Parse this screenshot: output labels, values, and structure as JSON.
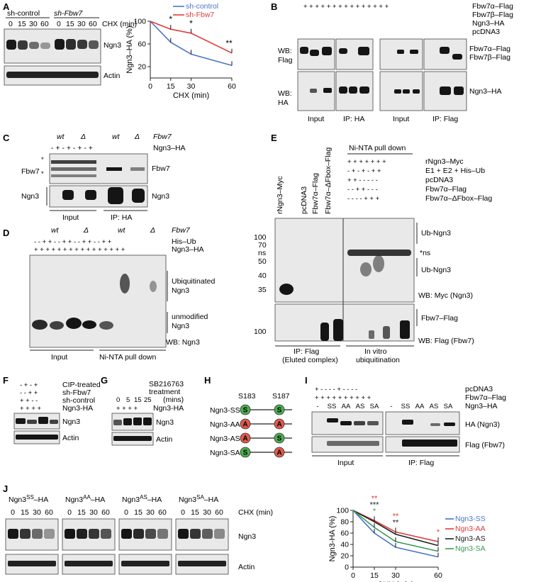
{
  "panels": {
    "A": "A",
    "B": "B",
    "C": "C",
    "D": "D",
    "E": "E",
    "F": "F",
    "G": "G",
    "H": "H",
    "I": "I",
    "J": "J"
  },
  "A": {
    "groups": [
      "sh-control",
      "sh-Fbw7"
    ],
    "cond_label": "CHX (min)",
    "timepoints": [
      "0",
      "15",
      "30",
      "60"
    ],
    "rows": [
      "Ngn3",
      "Actin"
    ]
  },
  "B": {
    "rows": [
      "Fbw7α–Flag",
      "Fbw7β–Flag",
      "Ngn3–HA",
      "pcDNA3"
    ],
    "wb1": [
      "WB:",
      "Flag"
    ],
    "wb2": [
      "WB:",
      "HA"
    ],
    "right": [
      "Fbw7α–Flag",
      "Fbw7β–Flag",
      "Ngn3–HA"
    ],
    "bottom": [
      "Input",
      "IP: HA",
      "Input",
      "IP: Flag"
    ]
  },
  "C": {
    "genotypes": [
      "wt",
      "Δ",
      "wt",
      "Δ"
    ],
    "gene": "Fbw7",
    "row": "Ngn3–HA",
    "left": [
      "*",
      "Fbw7",
      "*",
      "Ngn3"
    ],
    "right": [
      "Fbw7",
      "Ngn3"
    ],
    "bottom": [
      "Input",
      "IP: HA"
    ]
  },
  "D": {
    "genotypes": [
      "wt",
      "Δ",
      "wt",
      "Δ"
    ],
    "gene": "Fbw7",
    "rows": [
      "His–Ub",
      "Ngn3–HA"
    ],
    "right": [
      "Ubiquitinated",
      "Ngn3",
      "unmodified",
      "Ngn3"
    ],
    "wb": "WB: Ngn3",
    "bottom": [
      "Input",
      "Ni-NTA pull down"
    ]
  },
  "E": {
    "cols": [
      "rNgn3–Myc",
      "pcDNA3",
      "Fbw7α–Flag",
      "Fbw7α–ΔFbox–Flag"
    ],
    "header": "Ni-NTA pull down",
    "rows": [
      "rNgn3–Myc",
      "E1 + E2 + His–Ub",
      "pcDNA3",
      "Fbw7α–Flag",
      "Fbw7α–ΔFbox–Flag"
    ],
    "mw": [
      "100",
      "70",
      "ns",
      "50",
      "40",
      "35",
      "100"
    ],
    "right": [
      "Ub-Ngn3",
      "*ns",
      "Ub-Ngn3",
      "WB: Myc (Ngn3)",
      "Fbw7–Flag",
      "WB: Flag (Fbw7)"
    ],
    "bottom": [
      "IP: Flag",
      "(Eluted complex)",
      "In vitro",
      "ubiquitination"
    ]
  },
  "F": {
    "rows": [
      "CIP-treated",
      "sh-Fbw7",
      "sh-control",
      "Ngn3-HA"
    ],
    "blots": [
      "Ngn3",
      "Actin"
    ]
  },
  "G": {
    "rows": [
      "SB216763",
      "treatment",
      "(mins)",
      "Ngn3-HA"
    ],
    "times": [
      "0",
      "5",
      "15",
      "25"
    ],
    "blots": [
      "Ngn3",
      "Actin"
    ]
  },
  "H": {
    "sites": [
      "S183",
      "S187"
    ],
    "constructs": [
      {
        "name": "Ngn3-SS",
        "a": "S",
        "b": "S"
      },
      {
        "name": "Ngn3-AA",
        "a": "A",
        "b": "A"
      },
      {
        "name": "Ngn3-AS",
        "a": "A",
        "b": "S"
      },
      {
        "name": "Ngn3-SA",
        "a": "S",
        "b": "A"
      }
    ],
    "colors": {
      "S": "#4caf50",
      "A": "#e05a4a"
    }
  },
  "I": {
    "rows": [
      "pcDNA3",
      "Fbw7α–Flag",
      "Ngn3–HA"
    ],
    "lanes": [
      "-",
      "SS",
      "AA",
      "AS",
      "SA",
      "-",
      "SS",
      "AA",
      "AS",
      "SA"
    ],
    "blots": [
      "HA (Ngn3)",
      "Flag (Fbw7)"
    ],
    "bottom": [
      "Input",
      "IP: Flag"
    ]
  },
  "J": {
    "constructs": [
      {
        "base": "Ngn3",
        "sup": "SS",
        "suf": "–HA"
      },
      {
        "base": "Ngn3",
        "sup": "AA",
        "suf": "–HA"
      },
      {
        "base": "Ngn3",
        "sup": "AS",
        "suf": "–HA"
      },
      {
        "base": "Ngn3",
        "sup": "SA",
        "suf": "–HA"
      }
    ],
    "cond_label": "CHX (min)",
    "timepoints": [
      "0",
      "15",
      "30",
      "60"
    ],
    "rows": [
      "Ngn3",
      "Actin"
    ]
  },
  "chart_data": [
    {
      "type": "line",
      "panel": "A",
      "x": [
        0,
        15,
        30,
        60
      ],
      "xlabel": "CHX (min)",
      "ylabel": "Ngn3–HA (%)",
      "xlim": [
        0,
        60
      ],
      "ylim": [
        0,
        100
      ],
      "yticks": [
        20,
        60,
        100
      ],
      "ytick_labels": [
        "20",
        "60",
        "100"
      ],
      "xticks": [
        0,
        15,
        30,
        60
      ],
      "legend": "top-right",
      "grid": false,
      "series": [
        {
          "name": "sh-control",
          "color": "#4a74c9",
          "values": [
            100,
            63,
            42,
            22
          ]
        },
        {
          "name": "sh-Fbw7",
          "color": "#e23a3a",
          "values": [
            100,
            86,
            79,
            44
          ]
        }
      ],
      "annotations": [
        {
          "x": 15,
          "text": "*"
        },
        {
          "x": 30,
          "text": "*"
        },
        {
          "x": 60,
          "text": "**"
        }
      ]
    },
    {
      "type": "line",
      "panel": "J",
      "x": [
        0,
        15,
        30,
        60
      ],
      "xlabel": "CHX (min)",
      "ylabel": "Ngn3-HA (%)",
      "xlim": [
        0,
        60
      ],
      "ylim": [
        0,
        100
      ],
      "yticks": [
        0,
        20,
        40,
        60,
        80,
        100
      ],
      "ytick_labels": [
        "0",
        "20",
        "40",
        "60",
        "80",
        "100"
      ],
      "xticks": [
        0,
        15,
        30,
        60
      ],
      "legend": "right",
      "grid": false,
      "series": [
        {
          "name": "Ngn3-SS",
          "color": "#4a74c9",
          "values": [
            100,
            60,
            35,
            18
          ]
        },
        {
          "name": "Ngn3-AA",
          "color": "#e23a3a",
          "values": [
            100,
            82,
            62,
            45
          ]
        },
        {
          "name": "Ngn3-AS",
          "color": "#222222",
          "values": [
            100,
            80,
            58,
            38
          ]
        },
        {
          "name": "Ngn3-SA",
          "color": "#3a9a5a",
          "values": [
            100,
            70,
            45,
            28
          ]
        }
      ],
      "annotations": [
        {
          "x": 15,
          "text": "**",
          "color": "#e23a3a"
        },
        {
          "x": 15,
          "text": "***",
          "color": "#222222"
        },
        {
          "x": 15,
          "text": "*",
          "color": "#3a9a5a"
        },
        {
          "x": 30,
          "text": "**",
          "color": "#e23a3a"
        },
        {
          "x": 30,
          "text": "**",
          "color": "#222222"
        },
        {
          "x": 60,
          "text": "*",
          "color": "#e23a3a"
        }
      ]
    }
  ]
}
